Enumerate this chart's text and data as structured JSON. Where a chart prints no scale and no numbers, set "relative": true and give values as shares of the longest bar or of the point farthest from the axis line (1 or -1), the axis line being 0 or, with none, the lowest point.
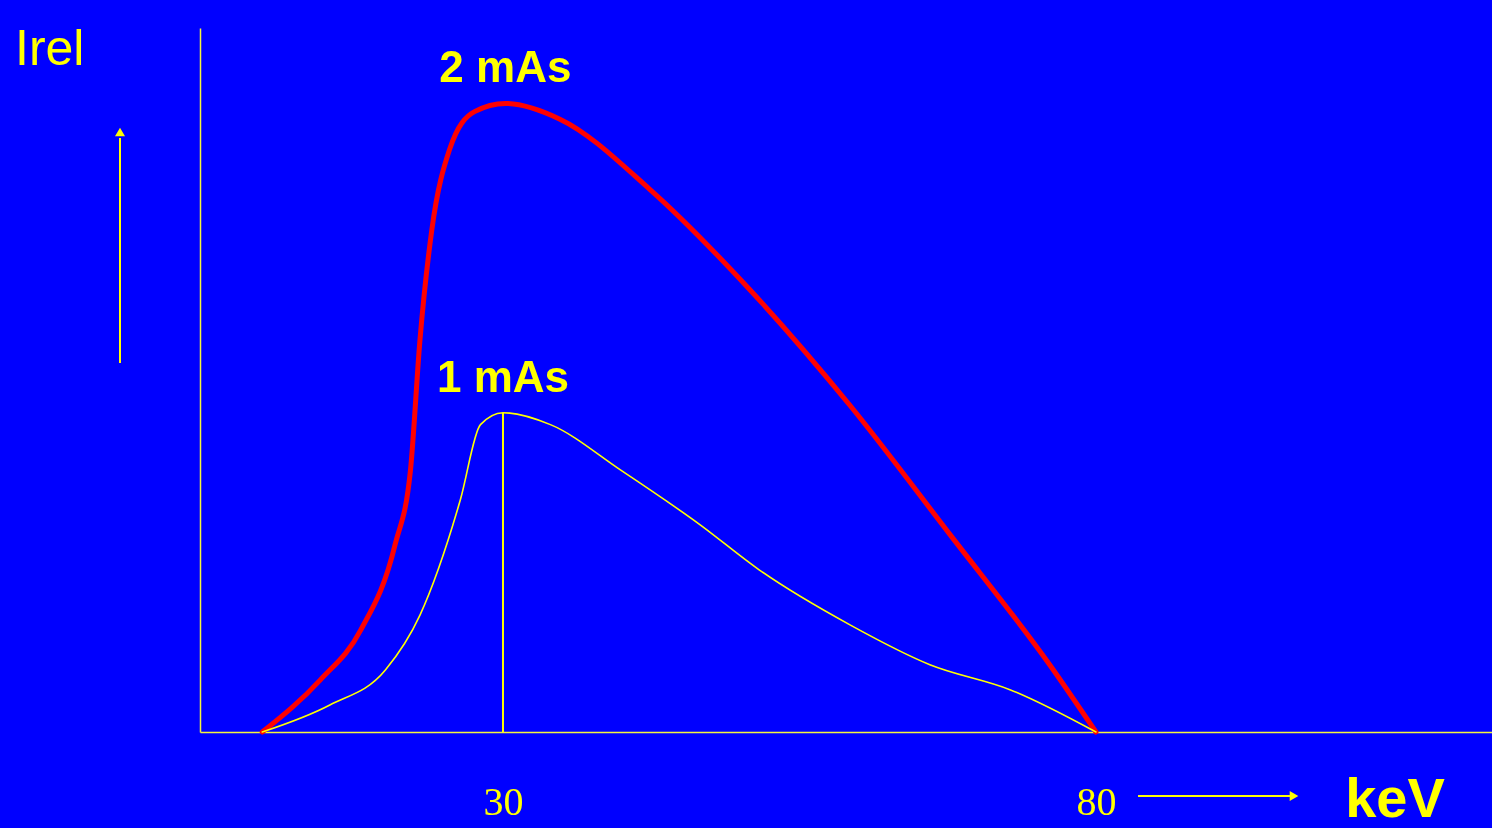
{
  "chart_data": {
    "type": "line",
    "relative": true,
    "xlabel": "keV",
    "ylabel": "Irel",
    "xlim": [
      4.45,
      113.4
    ],
    "xticks": [
      30,
      80
    ],
    "tick_labels": "x",
    "grid": false,
    "legend": false,
    "marker": "none",
    "line_style": "solid",
    "series": [
      {
        "name": "2 mAs",
        "color": "#ff0000",
        "x": [
          9.7,
          14.6,
          18.0,
          20.9,
          22.2,
          23.0,
          24.0,
          25.5,
          27.6,
          30.2,
          34.8,
          42.4,
          50.8,
          59.2,
          67.7,
          76.1,
          80
        ],
        "values": [
          0,
          0.083,
          0.162,
          0.298,
          0.417,
          0.624,
          0.799,
          0.927,
          0.987,
          1,
          0.975,
          0.863,
          0.704,
          0.521,
          0.314,
          0.107,
          0
        ]
      },
      {
        "name": "1 mAs",
        "color": "#ffff00",
        "x": [
          9.7,
          15.4,
          20.1,
          23.0,
          26.4,
          28.1,
          30,
          34.0,
          39.9,
          46.6,
          51.6,
          59.3,
          66.0,
          72.8,
          80
        ],
        "values": [
          0,
          0.043,
          0.099,
          0.186,
          0.369,
          0.489,
          0.508,
          0.489,
          0.417,
          0.33,
          0.258,
          0.17,
          0.107,
          0.067,
          0
        ]
      }
    ],
    "ref_lines": [
      {
        "axis": "x",
        "value": 30,
        "color": "#ffff00"
      }
    ]
  }
}
